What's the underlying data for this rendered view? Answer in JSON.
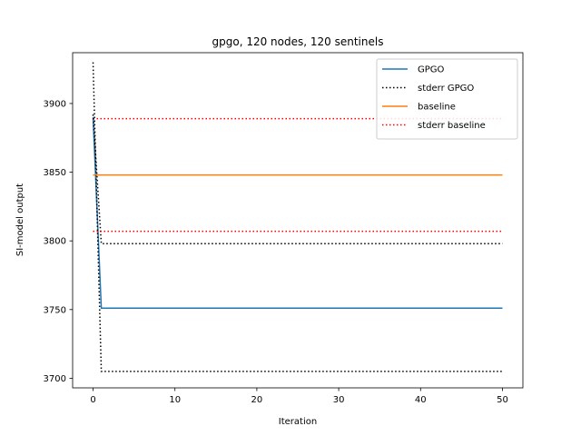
{
  "chart_data": {
    "type": "line",
    "title": "gpgo, 120 nodes, 120 sentinels",
    "xlabel": "Iteration",
    "ylabel": "SI-model output",
    "xlim": [
      -2.5,
      52.5
    ],
    "ylim": [
      3693,
      3937
    ],
    "xticks": [
      0,
      10,
      20,
      30,
      40,
      50
    ],
    "yticks": [
      3700,
      3750,
      3800,
      3850,
      3900
    ],
    "grid": false,
    "legend_position": "top-right",
    "x": [
      0,
      1,
      50
    ],
    "series": [
      {
        "name": "GPGO",
        "color": "#1f77b4",
        "style": "solid",
        "values": [
          3890,
          3751,
          3751
        ]
      },
      {
        "name": "stderr GPGO",
        "color": "#000000",
        "style": "dotted",
        "values": [
          3930,
          3705,
          3705
        ]
      },
      {
        "name": "baseline",
        "color": "#ff7f0e",
        "style": "solid",
        "values": [
          3848,
          3848,
          3848
        ]
      },
      {
        "name": "stderr baseline",
        "color": "#ff0000",
        "style": "dotted",
        "values": [
          3889,
          3889,
          3889
        ]
      }
    ],
    "extra_lines": [
      {
        "legend_ref": "stderr GPGO",
        "color": "#000000",
        "style": "dotted",
        "values": [
          3892,
          3798,
          3798
        ]
      },
      {
        "legend_ref": "stderr baseline",
        "color": "#ff0000",
        "style": "dotted",
        "values": [
          3807,
          3807,
          3807
        ]
      }
    ]
  }
}
